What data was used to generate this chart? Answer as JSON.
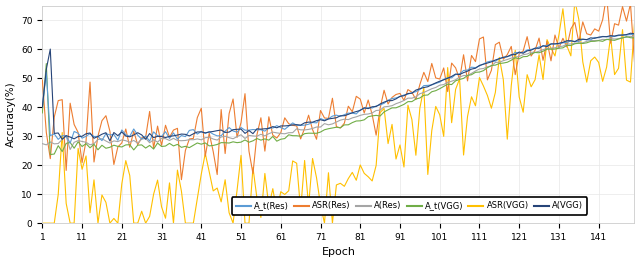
{
  "title": "",
  "xlabel": "Epoch",
  "ylabel": "Accuracy(%)",
  "xlim": [
    1,
    150
  ],
  "ylim": [
    0,
    75
  ],
  "yticks": [
    0,
    10,
    20,
    30,
    40,
    50,
    60,
    70
  ],
  "xticks": [
    1,
    11,
    21,
    31,
    41,
    51,
    61,
    71,
    81,
    91,
    101,
    111,
    121,
    131,
    141
  ],
  "xtick_labels": [
    "1",
    "11",
    "21",
    "31",
    "41",
    "51",
    "61",
    "71",
    "81",
    "91",
    "101",
    "111",
    "121",
    "131",
    "141"
  ],
  "legend_labels": [
    "A_t(Res)",
    "ASR(Res)",
    "A(Res)",
    "A_t(VGG)",
    "ASR(VGG)",
    "A(VGG)"
  ],
  "colors": {
    "A_t(Res)": "#5B9BD5",
    "ASR(Res)": "#ED7D31",
    "A(Res)": "#A5A5A5",
    "A_t(VGG)": "#70AD47",
    "ASR(VGG)": "#FFC000",
    "A(VGG)": "#264478"
  },
  "background_color": "#FFFFFF",
  "grid_color": "#E8E8E8",
  "epochs": 150,
  "figsize": [
    6.4,
    2.63
  ],
  "dpi": 100
}
